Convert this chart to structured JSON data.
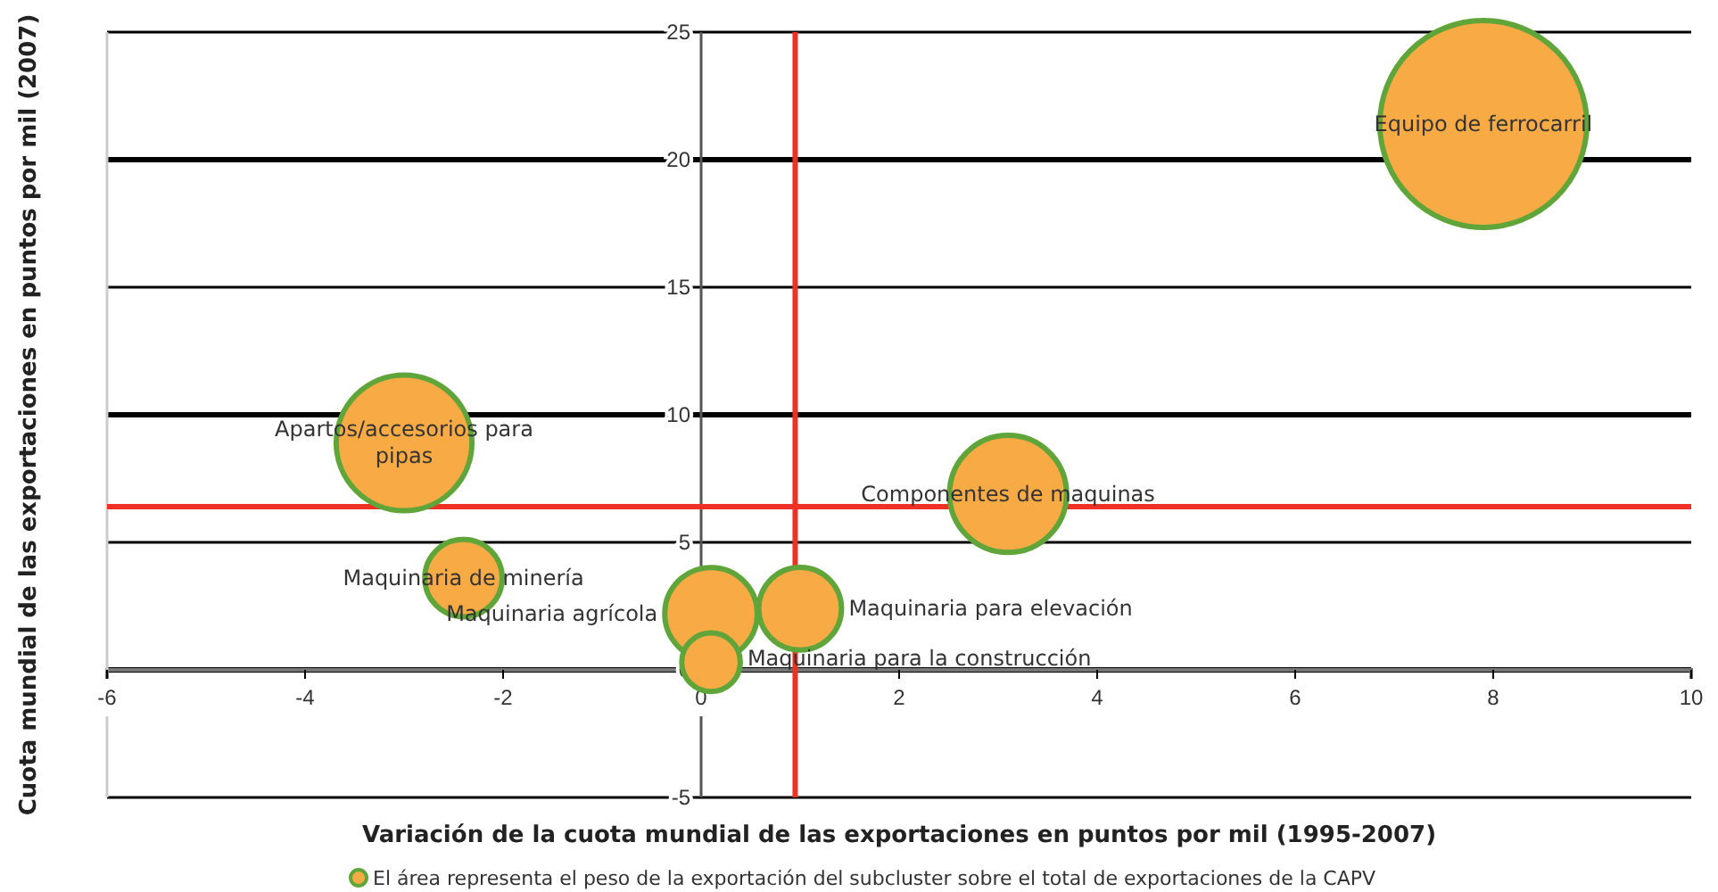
{
  "chart_data": {
    "type": "bubble",
    "xlabel": "Variación de la cuota mundial de las exportaciones en puntos por mil (1995-2007)",
    "ylabel": "Cuota mundial de las exportaciones en puntos por mil (2007)",
    "xlim": [
      -6,
      10
    ],
    "xticks": [
      -6,
      -4,
      -2,
      0,
      2,
      4,
      6,
      8,
      10
    ],
    "ylim": [
      -5,
      25
    ],
    "yticks": [
      -5,
      0,
      5,
      10,
      15,
      20,
      25
    ],
    "grid": "y",
    "series": [
      {
        "name": "Equipo de ferrocarril",
        "color": "#f8ab45",
        "x": [
          7.9
        ],
        "values": [
          21.4
        ],
        "sizes": [
          1
        ]
      },
      {
        "name": "Apartos/accesorios para pipas",
        "color": "#f8ab45",
        "x": [
          -3.0
        ],
        "values": [
          8.9
        ],
        "sizes": [
          0.43
        ]
      },
      {
        "name": "Componentes de maquinas",
        "color": "#f8ab45",
        "x": [
          3.1
        ],
        "values": [
          6.9
        ],
        "sizes": [
          0.32
        ]
      },
      {
        "name": "Maquinaria de minería",
        "color": "#f8ab45",
        "x": [
          -2.4
        ],
        "values": [
          3.6
        ],
        "sizes": [
          0.14
        ]
      },
      {
        "name": "Maquinaria agrícola",
        "color": "#f8ab45",
        "x": [
          0.1
        ],
        "values": [
          2.2
        ],
        "sizes": [
          0.2
        ]
      },
      {
        "name": "Maquinaria para elevación",
        "color": "#f8ab45",
        "x": [
          1.0
        ],
        "values": [
          2.4
        ],
        "sizes": [
          0.16
        ]
      },
      {
        "name": "Maquinaria para la construcción",
        "color": "#f8ab45",
        "x": [
          0.1
        ],
        "values": [
          0.3
        ],
        "sizes": [
          0.08
        ]
      }
    ],
    "ref_lines": [
      {
        "axis": "x",
        "value": 0.95,
        "color": "#ee3124"
      },
      {
        "axis": "y",
        "value": 6.4,
        "color": "#ee3124"
      }
    ],
    "annotations": [
      "El área representa el peso de la exportación del subcluster sobre el total de exportaciones de la CAPV"
    ]
  }
}
